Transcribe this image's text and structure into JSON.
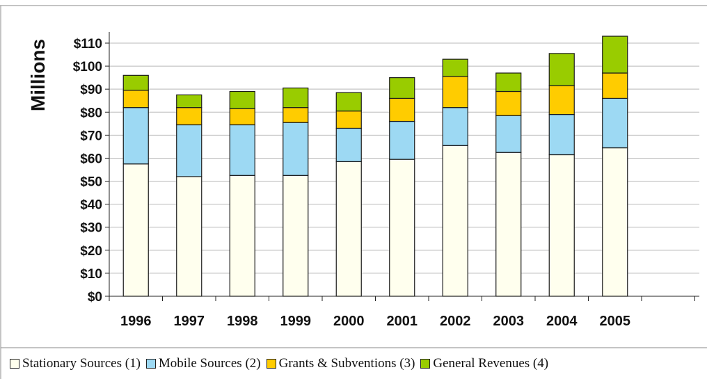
{
  "chart_data": {
    "type": "bar",
    "stacked": true,
    "ylabel": "Millions",
    "xlabel": "",
    "title": "",
    "ylim": [
      0,
      110
    ],
    "ytick_values": [
      0,
      10,
      20,
      30,
      40,
      50,
      60,
      70,
      80,
      90,
      100,
      110
    ],
    "ytick_labels": [
      "$0",
      "$10",
      "$20",
      "$30",
      "$40",
      "$50",
      "$60",
      "$70",
      "$80",
      "$90",
      "$100",
      "$110"
    ],
    "categories": [
      "1996",
      "1997",
      "1998",
      "1999",
      "2000",
      "2001",
      "2002",
      "2003",
      "2004",
      "2005"
    ],
    "series": [
      {
        "name": "Stationary Sources (1)",
        "color": "#FFFFEE",
        "values": [
          57.5,
          52,
          52.5,
          52.5,
          58.5,
          59.5,
          65.5,
          62.5,
          61.5,
          64.5
        ]
      },
      {
        "name": "Mobile Sources (2)",
        "color": "#9DD9F3",
        "values": [
          24.5,
          22.5,
          22,
          23,
          14.5,
          16.5,
          16.5,
          16,
          17.5,
          21.5
        ]
      },
      {
        "name": "Grants & Subventions (3)",
        "color": "#FFCC00",
        "values": [
          7.5,
          7.5,
          7,
          6.5,
          7.5,
          10,
          13.5,
          10.5,
          12.5,
          11
        ]
      },
      {
        "name": "General Revenues (4)",
        "color": "#99CC00",
        "values": [
          6.5,
          5.5,
          7.5,
          8.5,
          8,
          9,
          7.5,
          8,
          14,
          16
        ]
      }
    ],
    "grid": true,
    "legend_position": "bottom"
  }
}
